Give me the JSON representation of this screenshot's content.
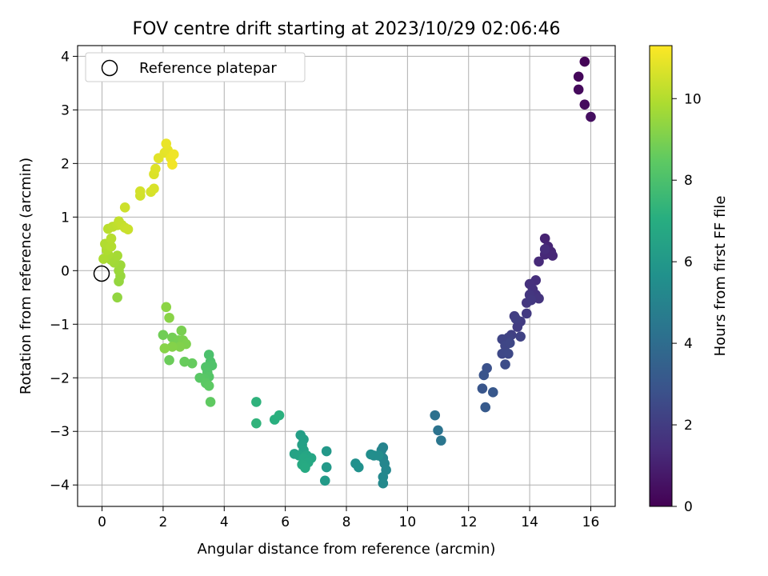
{
  "chart_data": {
    "type": "scatter",
    "title": "FOV centre drift starting at 2023/10/29 02:06:46",
    "xlabel": "Angular distance from reference (arcmin)",
    "ylabel": "Rotation from reference (arcmin)",
    "xlim": [
      -0.8,
      16.8
    ],
    "ylim": [
      -4.4,
      4.2
    ],
    "xticks": [
      0,
      2,
      4,
      6,
      8,
      10,
      12,
      14,
      16
    ],
    "yticks": [
      -4,
      -3,
      -2,
      -1,
      0,
      1,
      2,
      3,
      4
    ],
    "xtick_labels": [
      "0",
      "2",
      "4",
      "6",
      "8",
      "10",
      "12",
      "14",
      "16"
    ],
    "ytick_labels": [
      "−4",
      "−3",
      "−2",
      "−1",
      "0",
      "1",
      "2",
      "3",
      "4"
    ],
    "grid": true,
    "legend": {
      "placement": "top-left",
      "entries": [
        "Reference platepar"
      ]
    },
    "reference_point": {
      "x": 0,
      "y": 0,
      "label": "Reference platepar"
    },
    "colorbar": {
      "label": "Hours from first FF file",
      "colormap": "viridis",
      "range": [
        0,
        11.3
      ],
      "ticks": [
        0,
        2,
        4,
        6,
        8,
        10
      ],
      "tick_labels": [
        "0",
        "2",
        "4",
        "6",
        "8",
        "10"
      ]
    },
    "points": [
      {
        "x": 15.8,
        "y": 3.9,
        "c": 0.1
      },
      {
        "x": 15.6,
        "y": 3.62,
        "c": 0.2
      },
      {
        "x": 15.6,
        "y": 3.38,
        "c": 0.3
      },
      {
        "x": 15.8,
        "y": 3.1,
        "c": 0.35
      },
      {
        "x": 16.0,
        "y": 2.87,
        "c": 0.45
      },
      {
        "x": 14.5,
        "y": 0.6,
        "c": 1.1
      },
      {
        "x": 14.6,
        "y": 0.45,
        "c": 1.15
      },
      {
        "x": 14.7,
        "y": 0.35,
        "c": 1.2
      },
      {
        "x": 14.75,
        "y": 0.28,
        "c": 1.25
      },
      {
        "x": 14.5,
        "y": 0.3,
        "c": 1.3
      },
      {
        "x": 14.3,
        "y": 0.17,
        "c": 1.35
      },
      {
        "x": 14.5,
        "y": 0.4,
        "c": 1.4
      },
      {
        "x": 14.2,
        "y": -0.18,
        "c": 1.5
      },
      {
        "x": 14.0,
        "y": -0.25,
        "c": 1.55
      },
      {
        "x": 14.1,
        "y": -0.35,
        "c": 1.6
      },
      {
        "x": 14.2,
        "y": -0.45,
        "c": 1.65
      },
      {
        "x": 14.3,
        "y": -0.52,
        "c": 1.7
      },
      {
        "x": 14.0,
        "y": -0.45,
        "c": 1.75
      },
      {
        "x": 13.9,
        "y": -0.6,
        "c": 1.8
      },
      {
        "x": 14.05,
        "y": -0.55,
        "c": 1.85
      },
      {
        "x": 13.9,
        "y": -0.8,
        "c": 1.9
      },
      {
        "x": 13.7,
        "y": -0.95,
        "c": 1.95
      },
      {
        "x": 13.6,
        "y": -1.05,
        "c": 2.0
      },
      {
        "x": 13.5,
        "y": -0.85,
        "c": 2.05
      },
      {
        "x": 13.55,
        "y": -0.9,
        "c": 2.1
      },
      {
        "x": 13.4,
        "y": -1.2,
        "c": 2.15
      },
      {
        "x": 13.7,
        "y": -1.23,
        "c": 2.2
      },
      {
        "x": 13.3,
        "y": -1.25,
        "c": 2.25
      },
      {
        "x": 13.1,
        "y": -1.28,
        "c": 2.3
      },
      {
        "x": 13.2,
        "y": -1.4,
        "c": 2.35
      },
      {
        "x": 13.35,
        "y": -1.35,
        "c": 2.4
      },
      {
        "x": 13.1,
        "y": -1.55,
        "c": 2.45
      },
      {
        "x": 13.3,
        "y": -1.55,
        "c": 2.5
      },
      {
        "x": 13.2,
        "y": -1.75,
        "c": 2.6
      },
      {
        "x": 12.6,
        "y": -1.82,
        "c": 2.8
      },
      {
        "x": 12.5,
        "y": -1.95,
        "c": 2.9
      },
      {
        "x": 12.45,
        "y": -2.2,
        "c": 3.0
      },
      {
        "x": 12.8,
        "y": -2.27,
        "c": 3.1
      },
      {
        "x": 12.55,
        "y": -2.55,
        "c": 3.2
      },
      {
        "x": 10.9,
        "y": -2.7,
        "c": 4.2
      },
      {
        "x": 11.0,
        "y": -2.98,
        "c": 4.3
      },
      {
        "x": 11.1,
        "y": -3.17,
        "c": 4.4
      },
      {
        "x": 9.2,
        "y": -3.3,
        "c": 5.0
      },
      {
        "x": 9.15,
        "y": -3.35,
        "c": 5.05
      },
      {
        "x": 9.2,
        "y": -3.5,
        "c": 5.1
      },
      {
        "x": 9.25,
        "y": -3.6,
        "c": 5.15
      },
      {
        "x": 9.3,
        "y": -3.72,
        "c": 5.2
      },
      {
        "x": 9.2,
        "y": -3.85,
        "c": 5.25
      },
      {
        "x": 9.2,
        "y": -3.97,
        "c": 5.3
      },
      {
        "x": 8.9,
        "y": -3.45,
        "c": 5.4
      },
      {
        "x": 9.05,
        "y": -3.45,
        "c": 5.45
      },
      {
        "x": 8.8,
        "y": -3.43,
        "c": 5.5
      },
      {
        "x": 8.3,
        "y": -3.6,
        "c": 5.6
      },
      {
        "x": 8.4,
        "y": -3.67,
        "c": 5.65
      },
      {
        "x": 7.35,
        "y": -3.37,
        "c": 6.0
      },
      {
        "x": 7.35,
        "y": -3.67,
        "c": 6.05
      },
      {
        "x": 7.3,
        "y": -3.92,
        "c": 6.1
      },
      {
        "x": 6.5,
        "y": -3.07,
        "c": 6.3
      },
      {
        "x": 6.6,
        "y": -3.15,
        "c": 6.35
      },
      {
        "x": 6.55,
        "y": -3.25,
        "c": 6.4
      },
      {
        "x": 6.6,
        "y": -3.35,
        "c": 6.45
      },
      {
        "x": 6.3,
        "y": -3.42,
        "c": 6.5
      },
      {
        "x": 6.45,
        "y": -3.45,
        "c": 6.55
      },
      {
        "x": 6.7,
        "y": -3.45,
        "c": 6.6
      },
      {
        "x": 6.85,
        "y": -3.5,
        "c": 6.65
      },
      {
        "x": 6.6,
        "y": -3.5,
        "c": 6.7
      },
      {
        "x": 6.75,
        "y": -3.58,
        "c": 6.75
      },
      {
        "x": 6.55,
        "y": -3.62,
        "c": 6.8
      },
      {
        "x": 6.65,
        "y": -3.68,
        "c": 6.85
      },
      {
        "x": 5.65,
        "y": -2.78,
        "c": 7.1
      },
      {
        "x": 5.8,
        "y": -2.7,
        "c": 7.15
      },
      {
        "x": 5.05,
        "y": -2.45,
        "c": 7.25
      },
      {
        "x": 5.05,
        "y": -2.85,
        "c": 7.3
      },
      {
        "x": 3.5,
        "y": -1.57,
        "c": 8.0
      },
      {
        "x": 3.55,
        "y": -1.7,
        "c": 8.05
      },
      {
        "x": 3.6,
        "y": -1.77,
        "c": 8.1
      },
      {
        "x": 3.4,
        "y": -1.8,
        "c": 8.15
      },
      {
        "x": 3.45,
        "y": -1.9,
        "c": 8.2
      },
      {
        "x": 3.5,
        "y": -1.98,
        "c": 8.25
      },
      {
        "x": 3.35,
        "y": -2.02,
        "c": 8.3
      },
      {
        "x": 3.2,
        "y": -2.0,
        "c": 8.35
      },
      {
        "x": 3.4,
        "y": -2.1,
        "c": 8.4
      },
      {
        "x": 3.5,
        "y": -2.15,
        "c": 8.45
      },
      {
        "x": 3.55,
        "y": -2.45,
        "c": 8.5
      },
      {
        "x": 2.95,
        "y": -1.73,
        "c": 8.6
      },
      {
        "x": 2.7,
        "y": -1.7,
        "c": 8.65
      },
      {
        "x": 2.2,
        "y": -1.67,
        "c": 8.7
      },
      {
        "x": 2.0,
        "y": -1.2,
        "c": 8.8
      },
      {
        "x": 2.3,
        "y": -1.25,
        "c": 8.85
      },
      {
        "x": 2.5,
        "y": -1.3,
        "c": 8.9
      },
      {
        "x": 2.6,
        "y": -1.12,
        "c": 8.95
      },
      {
        "x": 2.65,
        "y": -1.3,
        "c": 9.0
      },
      {
        "x": 2.75,
        "y": -1.37,
        "c": 9.05
      },
      {
        "x": 2.55,
        "y": -1.42,
        "c": 9.1
      },
      {
        "x": 2.3,
        "y": -1.42,
        "c": 9.15
      },
      {
        "x": 2.05,
        "y": -1.45,
        "c": 9.2
      },
      {
        "x": 2.2,
        "y": -0.88,
        "c": 9.25
      },
      {
        "x": 2.1,
        "y": -0.68,
        "c": 9.3
      },
      {
        "x": 0.5,
        "y": -0.5,
        "c": 9.4
      },
      {
        "x": 0.55,
        "y": -0.2,
        "c": 9.45
      },
      {
        "x": 0.6,
        "y": -0.1,
        "c": 9.5
      },
      {
        "x": 0.55,
        "y": 0.0,
        "c": 9.55
      },
      {
        "x": 0.6,
        "y": 0.1,
        "c": 9.6
      },
      {
        "x": 0.4,
        "y": 0.15,
        "c": 9.65
      },
      {
        "x": 0.3,
        "y": 0.2,
        "c": 9.7
      },
      {
        "x": 0.5,
        "y": 0.28,
        "c": 9.75
      },
      {
        "x": 0.2,
        "y": 0.3,
        "c": 9.8
      },
      {
        "x": 0.05,
        "y": 0.22,
        "c": 9.85
      },
      {
        "x": 0.15,
        "y": 0.38,
        "c": 9.9
      },
      {
        "x": 0.1,
        "y": 0.5,
        "c": 9.95
      },
      {
        "x": 0.3,
        "y": 0.45,
        "c": 10.0
      },
      {
        "x": 0.3,
        "y": 0.6,
        "c": 10.05
      },
      {
        "x": 0.2,
        "y": 0.78,
        "c": 10.1
      },
      {
        "x": 0.35,
        "y": 0.82,
        "c": 10.15
      },
      {
        "x": 0.5,
        "y": 0.85,
        "c": 10.2
      },
      {
        "x": 0.55,
        "y": 0.92,
        "c": 10.25
      },
      {
        "x": 0.65,
        "y": 0.85,
        "c": 10.3
      },
      {
        "x": 0.75,
        "y": 0.8,
        "c": 10.35
      },
      {
        "x": 0.85,
        "y": 0.77,
        "c": 10.4
      },
      {
        "x": 0.75,
        "y": 1.18,
        "c": 10.45
      },
      {
        "x": 1.25,
        "y": 1.4,
        "c": 10.5
      },
      {
        "x": 1.25,
        "y": 1.48,
        "c": 10.55
      },
      {
        "x": 1.6,
        "y": 1.47,
        "c": 10.6
      },
      {
        "x": 1.7,
        "y": 1.53,
        "c": 10.65
      },
      {
        "x": 1.7,
        "y": 1.8,
        "c": 10.7
      },
      {
        "x": 1.75,
        "y": 1.9,
        "c": 10.75
      },
      {
        "x": 1.85,
        "y": 2.1,
        "c": 10.8
      },
      {
        "x": 2.05,
        "y": 2.2,
        "c": 10.85
      },
      {
        "x": 2.15,
        "y": 2.25,
        "c": 10.9
      },
      {
        "x": 2.1,
        "y": 2.37,
        "c": 10.95
      },
      {
        "x": 2.25,
        "y": 2.1,
        "c": 11.0
      },
      {
        "x": 2.35,
        "y": 2.17,
        "c": 11.05
      },
      {
        "x": 2.3,
        "y": 1.98,
        "c": 11.1
      }
    ]
  }
}
